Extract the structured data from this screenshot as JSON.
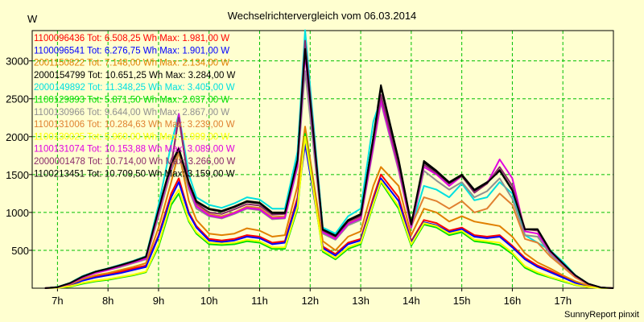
{
  "chart_data": {
    "type": "line",
    "title": "Wechselrichtervergleich vom 06.03.2014",
    "ylabel": "W",
    "footer": "SunnyReport pinxit",
    "xlim": [
      6.5,
      18.0
    ],
    "ylim": [
      0,
      3400
    ],
    "x_ticks": [
      {
        "value": 7,
        "label": "7h"
      },
      {
        "value": 8,
        "label": "8h"
      },
      {
        "value": 9,
        "label": "9h"
      },
      {
        "value": 10,
        "label": "10h"
      },
      {
        "value": 11,
        "label": "11h"
      },
      {
        "value": 12,
        "label": "12h"
      },
      {
        "value": 13,
        "label": "13h"
      },
      {
        "value": 14,
        "label": "14h"
      },
      {
        "value": 15,
        "label": "15h"
      },
      {
        "value": 16,
        "label": "16h"
      },
      {
        "value": 17,
        "label": "17h"
      }
    ],
    "y_ticks": [
      {
        "value": 500,
        "label": "500"
      },
      {
        "value": 1000,
        "label": "1000"
      },
      {
        "value": 1500,
        "label": "1500"
      },
      {
        "value": 2000,
        "label": "2000"
      },
      {
        "value": 2500,
        "label": "2500"
      },
      {
        "value": 3000,
        "label": "3000"
      }
    ],
    "grid": true,
    "legend_position": "top-left",
    "x": [
      6.75,
      7.0,
      7.25,
      7.5,
      7.75,
      8.0,
      8.25,
      8.5,
      8.75,
      9.0,
      9.25,
      9.4,
      9.6,
      9.75,
      10.0,
      10.25,
      10.5,
      10.75,
      11.0,
      11.25,
      11.5,
      11.75,
      11.9,
      12.25,
      12.5,
      12.75,
      13.0,
      13.25,
      13.4,
      13.75,
      14.0,
      14.25,
      14.5,
      14.75,
      15.0,
      15.25,
      15.5,
      15.75,
      16.0,
      16.25,
      16.5,
      16.75,
      17.0,
      17.25,
      17.5,
      17.75,
      18.0
    ],
    "series": [
      {
        "name": "1100096436 Tot: 6.508,25 Wh Max: 1.981,00 W",
        "color": "#ff0000",
        "values": [
          0,
          10,
          40,
          110,
          150,
          180,
          220,
          260,
          300,
          700,
          1250,
          1450,
          1000,
          820,
          650,
          630,
          650,
          700,
          680,
          600,
          620,
          1200,
          1981,
          550,
          450,
          600,
          650,
          1200,
          1500,
          1200,
          620,
          900,
          860,
          760,
          800,
          700,
          680,
          700,
          560,
          400,
          300,
          230,
          150,
          80,
          30,
          5,
          0
        ]
      },
      {
        "name": "1100096541 Tot: 6.276,75 Wh Max: 1.901,00 W",
        "color": "#0000ff",
        "values": [
          0,
          8,
          35,
          100,
          140,
          170,
          200,
          240,
          280,
          680,
          1200,
          1400,
          980,
          800,
          630,
          610,
          630,
          680,
          660,
          580,
          600,
          1150,
          1901,
          530,
          430,
          580,
          630,
          1150,
          1450,
          1150,
          600,
          870,
          830,
          740,
          780,
          680,
          660,
          680,
          540,
          380,
          280,
          210,
          140,
          70,
          25,
          5,
          0
        ]
      },
      {
        "name": "2001150822 Tot: 7.148,00 Wh Max: 2.134,00 W",
        "color": "#e08000",
        "values": [
          0,
          10,
          50,
          120,
          170,
          200,
          240,
          280,
          330,
          800,
          1400,
          1800,
          1150,
          900,
          720,
          700,
          720,
          790,
          760,
          680,
          700,
          1350,
          2134,
          620,
          500,
          680,
          750,
          1350,
          1600,
          1350,
          700,
          1050,
          1000,
          880,
          950,
          880,
          850,
          820,
          680,
          460,
          340,
          260,
          170,
          90,
          35,
          5,
          0
        ]
      },
      {
        "name": "2000154799 Tot: 10.651,25 Wh Max: 3.284,00 W",
        "color": "#000000",
        "values": [
          0,
          15,
          70,
          160,
          220,
          260,
          310,
          360,
          420,
          1050,
          1650,
          1850,
          1400,
          1150,
          1050,
          1020,
          1080,
          1150,
          1130,
          1000,
          1000,
          1700,
          3284,
          780,
          700,
          900,
          980,
          2000,
          2680,
          1700,
          850,
          1680,
          1550,
          1400,
          1500,
          1300,
          1400,
          1560,
          1300,
          780,
          780,
          500,
          330,
          170,
          60,
          10,
          0
        ]
      },
      {
        "name": "2000149892 Tot: 11.348,25 Wh Max: 3.405,00 W",
        "color": "#00e0e0",
        "values": [
          0,
          15,
          70,
          160,
          220,
          260,
          310,
          360,
          420,
          1100,
          1900,
          2300,
          1500,
          1200,
          1100,
          1060,
          1120,
          1200,
          1170,
          1050,
          1050,
          1800,
          3405,
          800,
          720,
          950,
          1050,
          2200,
          2500,
          1650,
          800,
          1350,
          1300,
          1200,
          1380,
          1160,
          1200,
          1400,
          1250,
          700,
          600,
          500,
          350,
          170,
          60,
          10,
          0
        ]
      },
      {
        "name": "1100129893 Tot: 5.871,50 Wh Max: 2.037,00 W",
        "color": "#00e000",
        "values": [
          0,
          5,
          20,
          60,
          90,
          110,
          140,
          170,
          210,
          550,
          1100,
          1250,
          880,
          720,
          580,
          570,
          580,
          620,
          600,
          520,
          520,
          1050,
          2037,
          480,
          380,
          520,
          580,
          1100,
          1400,
          1050,
          560,
          840,
          800,
          700,
          740,
          620,
          600,
          570,
          450,
          270,
          190,
          140,
          90,
          40,
          15,
          3,
          0
        ]
      },
      {
        "name": "1100130966 Tot: 9.644,00 Wh Max: 2.867,00 W",
        "color": "#909090",
        "values": [
          0,
          12,
          60,
          140,
          200,
          240,
          280,
          330,
          380,
          950,
          1550,
          1800,
          1300,
          1050,
          950,
          920,
          980,
          1050,
          1030,
          910,
          920,
          1600,
          2867,
          720,
          640,
          830,
          900,
          1850,
          2450,
          1550,
          800,
          1550,
          1420,
          1300,
          1400,
          1200,
          1280,
          1450,
          1180,
          700,
          680,
          450,
          300,
          150,
          55,
          10,
          0
        ]
      },
      {
        "name": "1100131006 Tot: 10.284,63 Wh Max: 3.239,00 W",
        "color": "#e08030",
        "values": [
          0,
          12,
          60,
          150,
          210,
          250,
          290,
          340,
          400,
          1000,
          1600,
          1800,
          1350,
          1100,
          980,
          950,
          1000,
          1080,
          1060,
          940,
          950,
          1650,
          3239,
          750,
          660,
          860,
          930,
          1900,
          2500,
          1600,
          820,
          1200,
          1150,
          1050,
          1150,
          1000,
          1050,
          1250,
          1100,
          650,
          600,
          420,
          280,
          140,
          50,
          8,
          0
        ]
      },
      {
        "name": "1100130025 Tot: 5.960,00 Wh Max: 1.999,00 W",
        "color": "#ffff00",
        "values": [
          0,
          5,
          25,
          70,
          100,
          120,
          150,
          180,
          220,
          580,
          1150,
          1300,
          900,
          740,
          600,
          590,
          600,
          640,
          620,
          540,
          540,
          1080,
          1999,
          500,
          400,
          540,
          600,
          1120,
          1420,
          1080,
          580,
          860,
          820,
          720,
          760,
          640,
          620,
          600,
          470,
          290,
          210,
          150,
          100,
          45,
          15,
          3,
          0
        ]
      },
      {
        "name": "1100131074 Tot: 10.153,88 Wh Max: 3.089,00 W",
        "color": "#e000e0",
        "values": [
          0,
          12,
          60,
          140,
          200,
          240,
          290,
          340,
          390,
          1000,
          1600,
          2300,
          1350,
          1080,
          960,
          930,
          990,
          1060,
          1040,
          920,
          930,
          1620,
          3089,
          740,
          650,
          850,
          920,
          1880,
          2480,
          1580,
          800,
          1600,
          1500,
          1350,
          1480,
          1280,
          1380,
          1700,
          1450,
          750,
          720,
          480,
          320,
          160,
          55,
          10,
          0
        ]
      },
      {
        "name": "2000001478 Tot: 10.714,00 Wh Max: 3.266,00 W",
        "color": "#8a2a6a",
        "values": [
          0,
          14,
          65,
          150,
          215,
          255,
          300,
          350,
          410,
          1030,
          1630,
          2250,
          1380,
          1120,
          1000,
          980,
          1040,
          1110,
          1090,
          970,
          980,
          1680,
          3266,
          760,
          680,
          880,
          950,
          1950,
          2550,
          1620,
          830,
          1630,
          1520,
          1380,
          1480,
          1260,
          1380,
          1600,
          1350,
          780,
          760,
          490,
          325,
          165,
          58,
          10,
          0
        ]
      },
      {
        "name": "1100213451 Tot: 10.709,50 Wh Max: 3.159,00 W",
        "color": "#000000",
        "values": [
          0,
          14,
          68,
          155,
          218,
          258,
          305,
          355,
          415,
          1040,
          1640,
          1830,
          1390,
          1140,
          1040,
          1010,
          1070,
          1140,
          1120,
          990,
          990,
          1690,
          3159,
          770,
          690,
          890,
          970,
          1980,
          2650,
          1680,
          845,
          1660,
          1540,
          1390,
          1490,
          1290,
          1390,
          1550,
          1290,
          775,
          775,
          495,
          328,
          168,
          59,
          10,
          0
        ]
      }
    ]
  }
}
